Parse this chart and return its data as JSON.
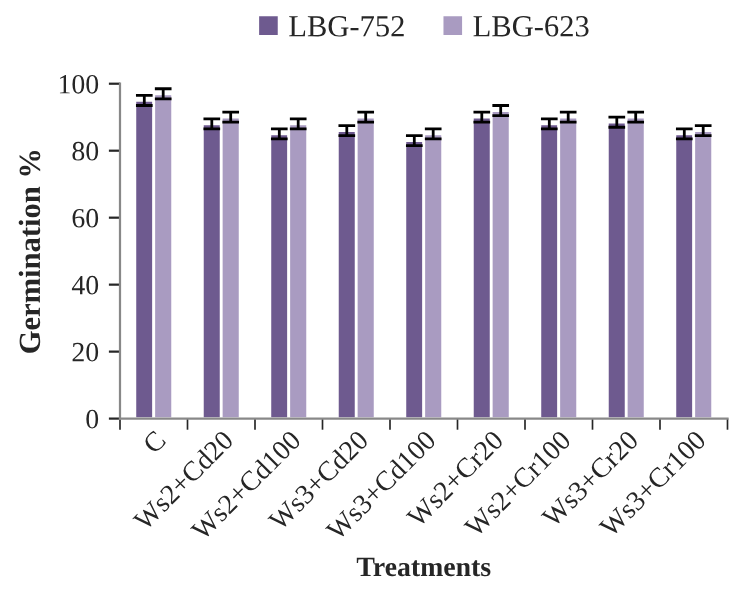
{
  "chart_data": {
    "type": "bar",
    "xlabel": "Treatments",
    "ylabel": "Germination %",
    "categories": [
      "C",
      "Ws2+Cd20",
      "Ws2+Cd100",
      "Ws3+Cd20",
      "Ws3+Cd100",
      "Ws2+Cr20",
      "Ws2+Cr100",
      "Ws3+Cr20",
      "Ws3+Cr100"
    ],
    "series": [
      {
        "name": "LBG-752",
        "color": "#6e5a8f",
        "values": [
          95,
          88,
          85,
          86,
          83,
          90,
          88,
          88.5,
          85
        ],
        "errors": [
          1.5,
          1.5,
          1.5,
          1.5,
          1.5,
          1.5,
          1.5,
          1.5,
          1.5
        ]
      },
      {
        "name": "LBG-623",
        "color": "#a99bc1",
        "values": [
          97,
          90,
          88,
          90,
          85,
          92,
          90,
          90,
          86
        ],
        "errors": [
          1.5,
          1.5,
          1.5,
          1.5,
          1.5,
          1.5,
          1.5,
          1.5,
          1.5
        ]
      }
    ],
    "ylim": [
      0,
      100
    ],
    "yticks": [
      0,
      20,
      40,
      60,
      80,
      100
    ],
    "grid": false,
    "legend": "top"
  }
}
